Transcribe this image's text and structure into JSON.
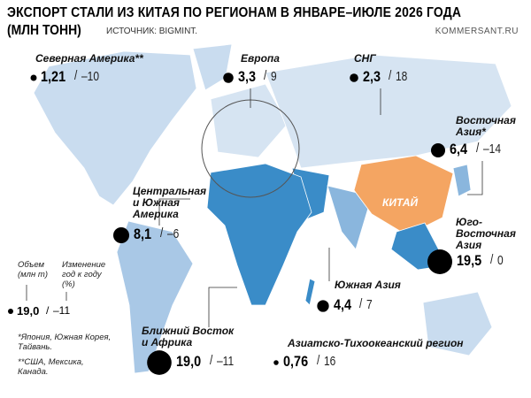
{
  "header": {
    "title": "ЭКСПОРТ СТАЛИ ИЗ КИТАЯ ПО РЕГИОНАМ В ЯНВАРЕ–ИЮЛЕ 2026 ГОДА",
    "unit": "(МЛН ТОНН)",
    "source": "ИСТОЧНИК: BIGMINT.",
    "site": "KOMMERSANT.RU"
  },
  "map": {
    "china_label": "КИТАЙ"
  },
  "regions": [
    {
      "name": "Северная Америка**",
      "volume": {
        "value": 1.21,
        "label": "1,21"
      },
      "change": {
        "value": -10,
        "label": "–10"
      }
    },
    {
      "name": "Европа",
      "volume": {
        "value": 3.3,
        "label": "3,3"
      },
      "change": 9
    },
    {
      "name": "СНГ",
      "volume": {
        "value": 2.3,
        "label": "2,3"
      },
      "change": 18
    },
    {
      "name": "Восточная Азия*",
      "volume": {
        "value": 6.4,
        "label": "6,4"
      },
      "change": {
        "value": -14,
        "label": "–14"
      }
    },
    {
      "name": "Центральная и Южная Америка",
      "volume": {
        "value": 8.1,
        "label": "8,1"
      },
      "change": {
        "value": -6,
        "label": "–6"
      }
    },
    {
      "name": "Юго-Восточная Азия",
      "volume": {
        "value": 19.5,
        "label": "19,5"
      },
      "change": 0
    },
    {
      "name": "Южная Азия",
      "volume": {
        "value": 4.4,
        "label": "4,4"
      },
      "change": 7
    },
    {
      "name": "Ближний Восток и Африка",
      "volume": {
        "value": 19.0,
        "label": "19,0"
      },
      "change": {
        "value": -11,
        "label": "–11"
      }
    },
    {
      "name": "Азиатско-Тихоокеанский регион",
      "volume": {
        "value": 0.76,
        "label": "0,76"
      },
      "change": 16
    }
  ],
  "legend": {
    "volume_label": "Объем (млн т)",
    "change_label": "Изменение год к году (%)",
    "example_volume": {
      "value": 19.0,
      "label": "19,0"
    },
    "example_change": {
      "value": -11,
      "label": "–11"
    }
  },
  "footnotes": [
    "*Япония, Южная Корея, Тайвань.",
    "**США, Мексика, Канада."
  ]
}
